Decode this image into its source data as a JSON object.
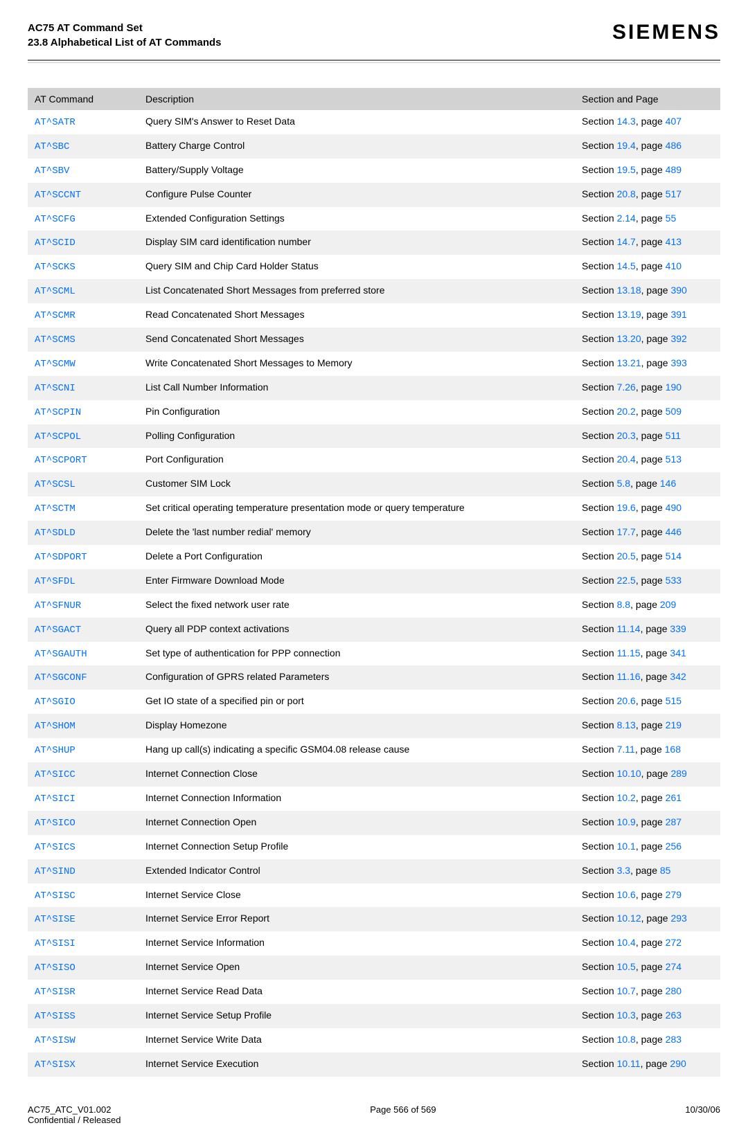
{
  "header": {
    "title": "AC75 AT Command Set",
    "subtitle": "23.8 Alphabetical List of AT Commands",
    "brand": "SIEMENS"
  },
  "table": {
    "headers": [
      "AT Command",
      "Description",
      "Section and Page"
    ],
    "rows": [
      {
        "cmd": "AT^SATR",
        "desc": "Query SIM's Answer to Reset Data",
        "sec": "14.3",
        "page": "407"
      },
      {
        "cmd": "AT^SBC",
        "desc": "Battery Charge Control",
        "sec": "19.4",
        "page": "486"
      },
      {
        "cmd": "AT^SBV",
        "desc": "Battery/Supply Voltage",
        "sec": "19.5",
        "page": "489"
      },
      {
        "cmd": "AT^SCCNT",
        "desc": "Configure Pulse Counter",
        "sec": "20.8",
        "page": "517"
      },
      {
        "cmd": "AT^SCFG",
        "desc": "Extended Configuration Settings",
        "sec": "2.14",
        "page": "55"
      },
      {
        "cmd": "AT^SCID",
        "desc": "Display SIM card identification number",
        "sec": "14.7",
        "page": "413"
      },
      {
        "cmd": "AT^SCKS",
        "desc": "Query SIM and Chip Card Holder Status",
        "sec": "14.5",
        "page": "410"
      },
      {
        "cmd": "AT^SCML",
        "desc": "List Concatenated Short Messages from preferred store",
        "sec": "13.18",
        "page": "390"
      },
      {
        "cmd": "AT^SCMR",
        "desc": "Read Concatenated Short Messages",
        "sec": "13.19",
        "page": "391"
      },
      {
        "cmd": "AT^SCMS",
        "desc": "Send Concatenated Short Messages",
        "sec": "13.20",
        "page": "392"
      },
      {
        "cmd": "AT^SCMW",
        "desc": "Write Concatenated Short Messages to Memory",
        "sec": "13.21",
        "page": "393"
      },
      {
        "cmd": "AT^SCNI",
        "desc": "List Call Number Information",
        "sec": "7.26",
        "page": "190"
      },
      {
        "cmd": "AT^SCPIN",
        "desc": "Pin Configuration",
        "sec": "20.2",
        "page": "509"
      },
      {
        "cmd": "AT^SCPOL",
        "desc": "Polling Configuration",
        "sec": "20.3",
        "page": "511"
      },
      {
        "cmd": "AT^SCPORT",
        "desc": "Port Configuration",
        "sec": "20.4",
        "page": "513"
      },
      {
        "cmd": "AT^SCSL",
        "desc": "Customer SIM Lock",
        "sec": "5.8",
        "page": "146"
      },
      {
        "cmd": "AT^SCTM",
        "desc": "Set critical operating temperature presentation mode or query temperature",
        "sec": "19.6",
        "page": "490"
      },
      {
        "cmd": "AT^SDLD",
        "desc": "Delete the 'last number redial' memory",
        "sec": "17.7",
        "page": "446"
      },
      {
        "cmd": "AT^SDPORT",
        "desc": "Delete a Port Configuration",
        "sec": "20.5",
        "page": "514"
      },
      {
        "cmd": "AT^SFDL",
        "desc": "Enter Firmware Download Mode",
        "sec": "22.5",
        "page": "533"
      },
      {
        "cmd": "AT^SFNUR",
        "desc": "Select the fixed network user rate",
        "sec": "8.8",
        "page": "209"
      },
      {
        "cmd": "AT^SGACT",
        "desc": "Query all PDP context activations",
        "sec": "11.14",
        "page": "339"
      },
      {
        "cmd": "AT^SGAUTH",
        "desc": "Set type of authentication for PPP connection",
        "sec": "11.15",
        "page": "341"
      },
      {
        "cmd": "AT^SGCONF",
        "desc": "Configuration of GPRS related Parameters",
        "sec": "11.16",
        "page": "342"
      },
      {
        "cmd": "AT^SGIO",
        "desc": "Get IO state of a specified pin or port",
        "sec": "20.6",
        "page": "515"
      },
      {
        "cmd": "AT^SHOM",
        "desc": "Display Homezone",
        "sec": "8.13",
        "page": "219"
      },
      {
        "cmd": "AT^SHUP",
        "desc": "Hang up call(s) indicating a specific GSM04.08 release cause",
        "sec": "7.11",
        "page": "168"
      },
      {
        "cmd": "AT^SICC",
        "desc": "Internet Connection Close",
        "sec": "10.10",
        "page": "289"
      },
      {
        "cmd": "AT^SICI",
        "desc": "Internet Connection Information",
        "sec": "10.2",
        "page": "261"
      },
      {
        "cmd": "AT^SICO",
        "desc": "Internet Connection Open",
        "sec": "10.9",
        "page": "287"
      },
      {
        "cmd": "AT^SICS",
        "desc": "Internet Connection Setup Profile",
        "sec": "10.1",
        "page": "256"
      },
      {
        "cmd": "AT^SIND",
        "desc": "Extended Indicator Control",
        "sec": "3.3",
        "page": "85"
      },
      {
        "cmd": "AT^SISC",
        "desc": "Internet Service Close",
        "sec": "10.6",
        "page": "279"
      },
      {
        "cmd": "AT^SISE",
        "desc": "Internet Service Error Report",
        "sec": "10.12",
        "page": "293"
      },
      {
        "cmd": "AT^SISI",
        "desc": "Internet Service Information",
        "sec": "10.4",
        "page": "272"
      },
      {
        "cmd": "AT^SISO",
        "desc": "Internet Service Open",
        "sec": "10.5",
        "page": "274"
      },
      {
        "cmd": "AT^SISR",
        "desc": "Internet Service Read Data",
        "sec": "10.7",
        "page": "280"
      },
      {
        "cmd": "AT^SISS",
        "desc": "Internet Service Setup Profile",
        "sec": "10.3",
        "page": "263"
      },
      {
        "cmd": "AT^SISW",
        "desc": "Internet Service Write Data",
        "sec": "10.8",
        "page": "283"
      },
      {
        "cmd": "AT^SISX",
        "desc": "Internet Service Execution",
        "sec": "10.11",
        "page": "290"
      }
    ]
  },
  "footer": {
    "left_line1": "AC75_ATC_V01.002",
    "left_line2": "Confidential / Released",
    "center": "Page 566 of 569",
    "right": "10/30/06"
  },
  "colors": {
    "link": "#0070ff",
    "header_bg": "#d2d2d2",
    "stripe_bg": "#f0f0f0",
    "hr_dark": "#777777",
    "hr_light": "#cccccc"
  }
}
